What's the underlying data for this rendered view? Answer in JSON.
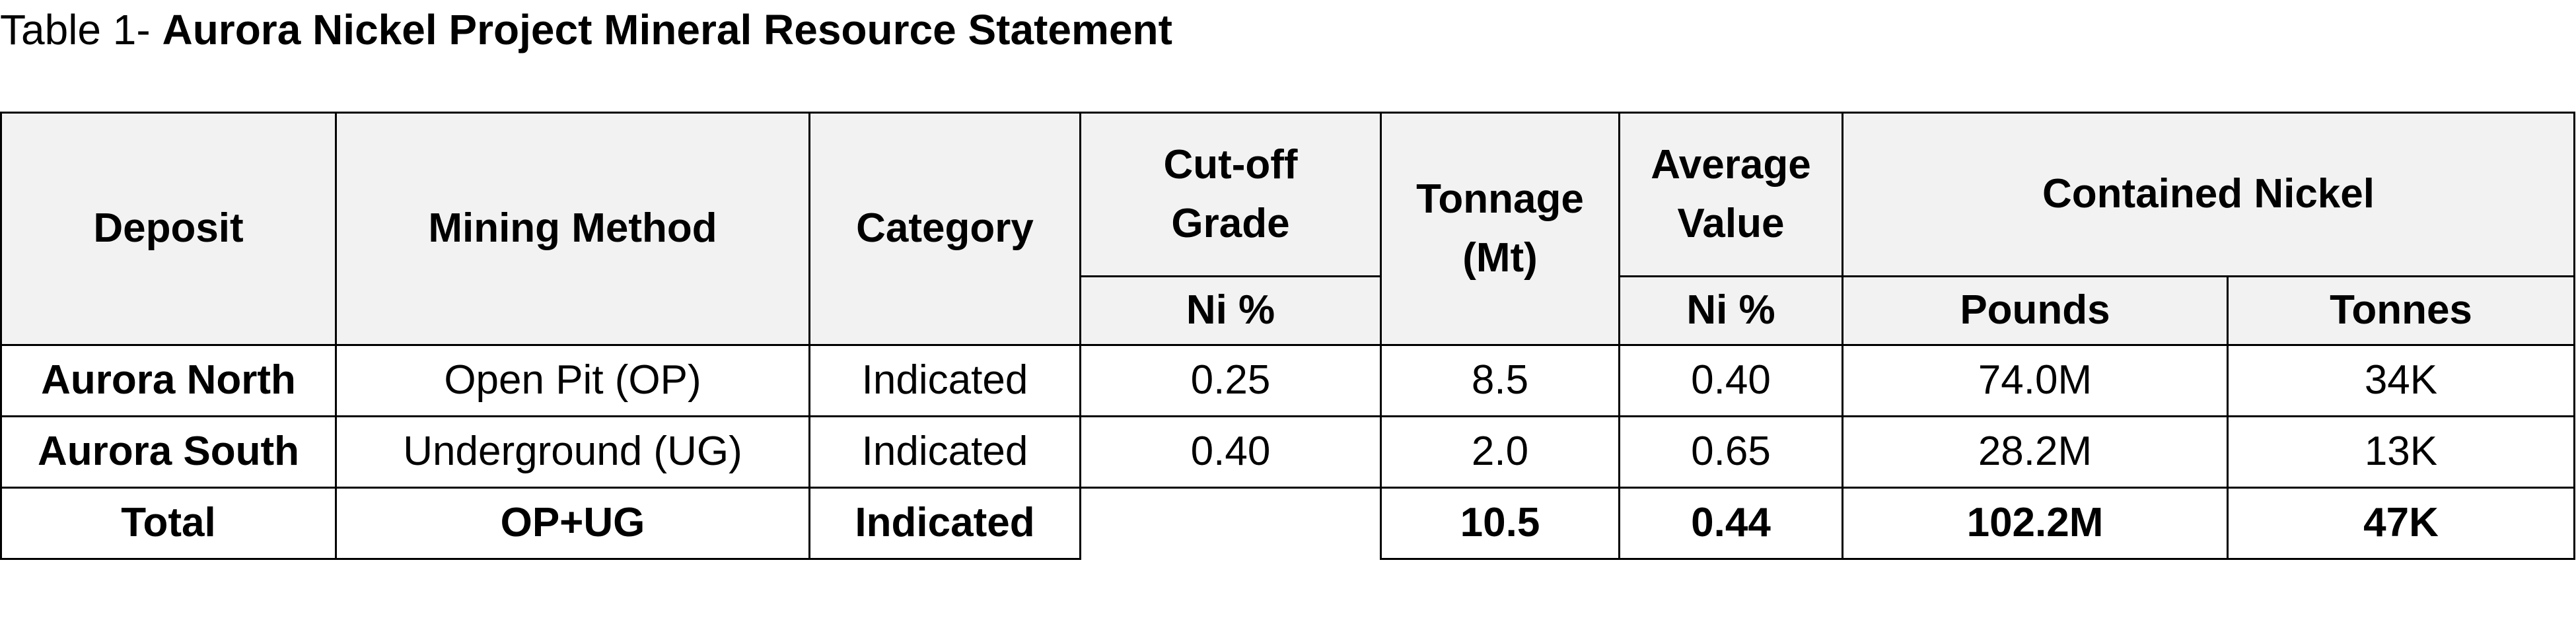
{
  "title": {
    "prefix": "Table 1-",
    "main": "Aurora Nickel Project Mineral Resource Statement"
  },
  "table": {
    "header": {
      "deposit": "Deposit",
      "mining_method": "Mining Method",
      "category": "Category",
      "cutoff": [
        "Cut-off",
        "Grade"
      ],
      "tonnage": [
        "Tonnage",
        "(Mt)"
      ],
      "average": [
        "Average",
        "Value"
      ],
      "contained": "Contained Nickel",
      "cutoff_unit": "Ni %",
      "average_unit": "Ni %",
      "pounds": "Pounds",
      "tonnes": "Tonnes"
    },
    "rows": [
      [
        "Aurora North",
        "Open Pit (OP)",
        "Indicated",
        "0.25",
        "8.5",
        "0.40",
        "74.0M",
        "34K"
      ],
      [
        "Aurora South",
        "Underground (UG)",
        "Indicated",
        "0.40",
        "2.0",
        "0.65",
        "28.2M",
        "13K"
      ]
    ],
    "total": {
      "label": "Total",
      "mining_method": "OP+UG",
      "category": "Indicated",
      "tonnage": "10.5",
      "average": "0.44",
      "pounds": "102.2M",
      "tonnes": "47K"
    }
  }
}
